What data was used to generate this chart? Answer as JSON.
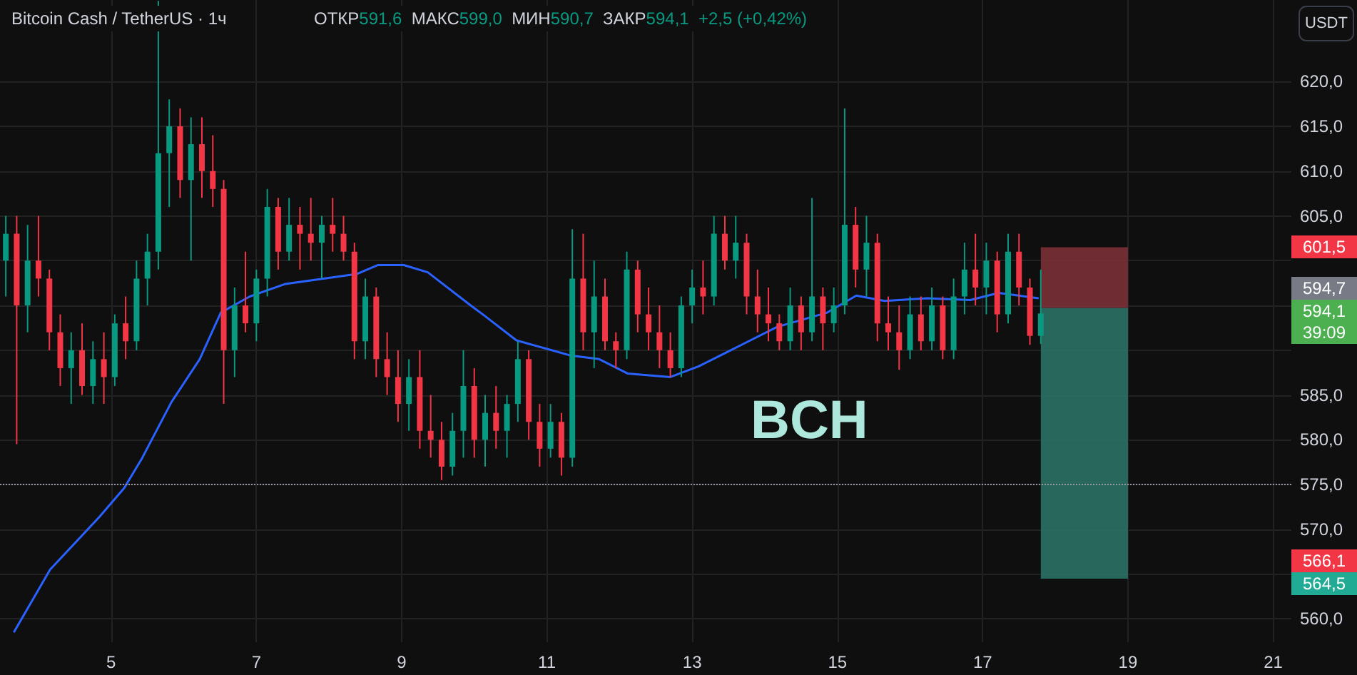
{
  "chart_data": {
    "type": "candlestick",
    "title": "Bitcoin Cash / TetherUS · 1ч",
    "subtitle": "ОТКР591,6  МАКС599,0  МИН590,7  ЗАКР594,1  +2,5 (+0,42%)",
    "x": [
      3.55,
      3.7,
      3.85,
      4,
      4.15,
      4.3,
      4.45,
      4.6,
      4.75,
      4.9,
      5.05,
      5.2,
      5.35,
      5.5,
      5.65,
      5.8,
      5.95,
      6.1,
      6.25,
      6.4,
      6.55,
      6.7,
      6.85,
      7,
      7.15,
      7.3,
      7.45,
      7.6,
      7.75,
      7.9,
      8.05,
      8.2,
      8.35,
      8.5,
      8.65,
      8.8,
      8.95,
      9.1,
      9.25,
      9.4,
      9.55,
      9.7,
      9.85,
      10,
      10.15,
      10.3,
      10.45,
      10.6,
      10.75,
      10.9,
      11.05,
      11.2,
      11.35,
      11.5,
      11.65,
      11.8,
      11.95,
      12.1,
      12.25,
      12.4,
      12.55,
      12.7,
      12.85,
      13,
      13.15,
      13.3,
      13.45,
      13.6,
      13.75,
      13.9,
      14.05,
      14.2,
      14.35,
      14.5,
      14.65,
      14.8,
      14.95,
      15.1,
      15.25,
      15.4,
      15.55,
      15.7,
      15.85,
      16,
      16.15,
      16.3,
      16.45,
      16.6,
      16.75,
      16.9,
      17.05,
      17.2,
      17.35,
      17.5,
      17.65,
      17.8
    ],
    "ohlc": [
      [
        600,
        605,
        596,
        603
      ],
      [
        603,
        605,
        579.5,
        595
      ],
      [
        595,
        604,
        592,
        600
      ],
      [
        600,
        605,
        596,
        598
      ],
      [
        598,
        599,
        590,
        592
      ],
      [
        592,
        594,
        586,
        588
      ],
      [
        588,
        592,
        584,
        590
      ],
      [
        590,
        593,
        585,
        586
      ],
      [
        586,
        591,
        584,
        589
      ],
      [
        589,
        592,
        584,
        587
      ],
      [
        587,
        594,
        586,
        593
      ],
      [
        593,
        596,
        589,
        591
      ],
      [
        591,
        600,
        590,
        598
      ],
      [
        598,
        603,
        595,
        601
      ],
      [
        601,
        629,
        599,
        612
      ],
      [
        612,
        618,
        606,
        615
      ],
      [
        615,
        617,
        607,
        609
      ],
      [
        609,
        616,
        600,
        613
      ],
      [
        613,
        616,
        607,
        610
      ],
      [
        610,
        614,
        606,
        608
      ],
      [
        608,
        609,
        584,
        590
      ],
      [
        590,
        597,
        587,
        595
      ],
      [
        595,
        601,
        592,
        593
      ],
      [
        593,
        599,
        591,
        598
      ],
      [
        598,
        608,
        596,
        606
      ],
      [
        606,
        607,
        599,
        601
      ],
      [
        601,
        607,
        600,
        604
      ],
      [
        604,
        606,
        599,
        603
      ],
      [
        603,
        607,
        600,
        602
      ],
      [
        602,
        605,
        598,
        604
      ],
      [
        604,
        607,
        601,
        603
      ],
      [
        603,
        605,
        600,
        601
      ],
      [
        601,
        602,
        589,
        591
      ],
      [
        591,
        598,
        589,
        596
      ],
      [
        596,
        597,
        587,
        589
      ],
      [
        589,
        592,
        585,
        587
      ],
      [
        587,
        590,
        582,
        584
      ],
      [
        584,
        589,
        581,
        587
      ],
      [
        587,
        590,
        579,
        581
      ],
      [
        581,
        585,
        578,
        580
      ],
      [
        580,
        582,
        575.5,
        577
      ],
      [
        577,
        583,
        576,
        581
      ],
      [
        581,
        590,
        578,
        586
      ],
      [
        586,
        588,
        578,
        580
      ],
      [
        580,
        585,
        577,
        583
      ],
      [
        583,
        586,
        579,
        581
      ],
      [
        581,
        585,
        578,
        584
      ],
      [
        584,
        591,
        582,
        589
      ],
      [
        589,
        590,
        580,
        582
      ],
      [
        582,
        584,
        577,
        579
      ],
      [
        579,
        584,
        578,
        582
      ],
      [
        582,
        583,
        576,
        578
      ],
      [
        578,
        603.5,
        577,
        598
      ],
      [
        598,
        603,
        590,
        592
      ],
      [
        592,
        600,
        588,
        596
      ],
      [
        596,
        598,
        590,
        591
      ],
      [
        591,
        592,
        588,
        590
      ],
      [
        590,
        601,
        589,
        599
      ],
      [
        599,
        600,
        592,
        594
      ],
      [
        594,
        597,
        590,
        592
      ],
      [
        592,
        595,
        588,
        590
      ],
      [
        590,
        592,
        587,
        588
      ],
      [
        588,
        596,
        587,
        595
      ],
      [
        595,
        599,
        593,
        597
      ],
      [
        597,
        600,
        594,
        596
      ],
      [
        596,
        605,
        595,
        603
      ],
      [
        603,
        605,
        599,
        600
      ],
      [
        600,
        605,
        598,
        602
      ],
      [
        602,
        603,
        594,
        596
      ],
      [
        596,
        599,
        592,
        594
      ],
      [
        594,
        597,
        591,
        593
      ],
      [
        593,
        594,
        590,
        591
      ],
      [
        591,
        597,
        590,
        595
      ],
      [
        595,
        596,
        590,
        592
      ],
      [
        592,
        607,
        591,
        596
      ],
      [
        596,
        597,
        590,
        593
      ],
      [
        593,
        597,
        592,
        595
      ],
      [
        595,
        617,
        594,
        604
      ],
      [
        604,
        606,
        597,
        599
      ],
      [
        599,
        605,
        596,
        602
      ],
      [
        602,
        603,
        591,
        593
      ],
      [
        593,
        596,
        590,
        592
      ],
      [
        592,
        595,
        587.8,
        590
      ],
      [
        590,
        596,
        589,
        594
      ],
      [
        594,
        596,
        590,
        591
      ],
      [
        591,
        597,
        590,
        595
      ],
      [
        595,
        596,
        589,
        590
      ],
      [
        590,
        598,
        589,
        596
      ],
      [
        596,
        602,
        594,
        599
      ],
      [
        599,
        603,
        595,
        597
      ],
      [
        597,
        602,
        594,
        600
      ],
      [
        600,
        601,
        592,
        594
      ],
      [
        594,
        603,
        593,
        601
      ],
      [
        601,
        603,
        595,
        597
      ],
      [
        597,
        598,
        590.6,
        591.6
      ],
      [
        591.6,
        599,
        590.7,
        594.1
      ]
    ],
    "series": [
      {
        "type": "line",
        "color": "#2962ff",
        "marker": "none",
        "line_style": "solid",
        "x": [
          3.66,
          4.16,
          4.84,
          5.18,
          5.43,
          5.83,
          6.22,
          6.51,
          6.91,
          7.4,
          8.38,
          8.67,
          9.03,
          9.36,
          9.95,
          10.15,
          10.58,
          11.33,
          11.72,
          12.11,
          12.7,
          13.09,
          13.68,
          14.17,
          14.86,
          15.26,
          15.65,
          16.24,
          16.83,
          17.22,
          17.77
        ],
        "values": [
          558.5,
          565.5,
          571.4,
          574.6,
          578,
          584.2,
          589,
          594.2,
          596,
          597.4,
          598.5,
          599.5,
          599.5,
          598.7,
          595,
          593.8,
          591.1,
          589.4,
          589,
          587.4,
          587,
          588.2,
          590.6,
          592.6,
          594.2,
          596.1,
          595.5,
          595.8,
          595.6,
          596.4,
          595.8
        ]
      }
    ],
    "xlim": [
      3.47,
      21.25
    ],
    "xticks": [
      5,
      7,
      9,
      11,
      13,
      15,
      17,
      19,
      21
    ],
    "ylim": [
      557.4,
      629.1
    ],
    "yticks": [
      {
        "value": 560,
        "label": "560,0"
      },
      {
        "value": 565,
        "label": null
      },
      {
        "value": 570,
        "label": "570,0"
      },
      {
        "value": 575,
        "label": "575,0"
      },
      {
        "value": 580,
        "label": "580,0"
      },
      {
        "value": 585,
        "label": "585,0"
      },
      {
        "value": 590,
        "label": null
      },
      {
        "value": 595,
        "label": null
      },
      {
        "value": 600,
        "label": null
      },
      {
        "value": 605,
        "label": "605,0"
      },
      {
        "value": 610,
        "label": "610,0"
      },
      {
        "value": 615,
        "label": "615,0"
      },
      {
        "value": 620,
        "label": "620,0"
      }
    ],
    "ref_lines": [
      {
        "axis": "y",
        "value": 575,
        "line_style": "dotted",
        "color": "#9598a1"
      }
    ],
    "bands": [
      {
        "axis": "y",
        "from": 594.7,
        "to": 601.5,
        "color": "#7a3036"
      },
      {
        "axis": "y",
        "from": 564.5,
        "to": 594.7,
        "color": "#2b7165"
      }
    ],
    "annotations": [
      "BCH",
      "USDT",
      "601,5",
      "594,7",
      "594,1",
      "39:09",
      "566,1",
      "564,5"
    ],
    "grid": true
  }
}
